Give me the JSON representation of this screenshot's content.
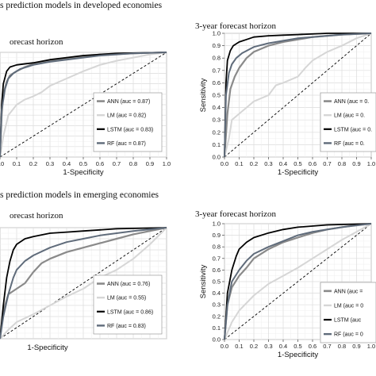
{
  "sections": [
    {
      "title": "s prediction models in developed economies"
    },
    {
      "title": "s prediction models in emerging economies"
    }
  ],
  "chart_data": [
    {
      "type": "line",
      "title": "orecast horizon",
      "xlabel": "1-Specificity",
      "ylabel": "",
      "xlim": [
        0,
        1
      ],
      "ylim": [
        0,
        1
      ],
      "x_ticks": [
        "0.0",
        "0.1",
        "0.2",
        "0.3",
        "0.4",
        "0.5",
        "0.6",
        "0.7",
        "0.8",
        "0.9",
        "1.0"
      ],
      "y_ticks": [],
      "grid": true,
      "legend_position": "bottom-right",
      "series": [
        {
          "name": "ANN (auc = 0.87)",
          "color": "#8a8a8a",
          "width": 2.2,
          "x": [
            0,
            0.01,
            0.02,
            0.04,
            0.06,
            0.1,
            0.15,
            0.2,
            0.3,
            0.4,
            0.5,
            0.6,
            0.8,
            1.0
          ],
          "y": [
            0,
            0.4,
            0.6,
            0.72,
            0.78,
            0.82,
            0.86,
            0.89,
            0.92,
            0.94,
            0.96,
            0.98,
            0.99,
            1.0
          ]
        },
        {
          "name": "LM (auc = 0.82)",
          "color": "#d6d6d6",
          "width": 2,
          "x": [
            0,
            0.02,
            0.05,
            0.1,
            0.15,
            0.2,
            0.25,
            0.3,
            0.4,
            0.5,
            0.6,
            0.7,
            0.8,
            0.9,
            1.0
          ],
          "y": [
            0,
            0.2,
            0.4,
            0.5,
            0.55,
            0.58,
            0.62,
            0.68,
            0.75,
            0.82,
            0.88,
            0.92,
            0.95,
            0.98,
            1.0
          ]
        },
        {
          "name": "LSTM (auc = 0.83)",
          "color": "#000000",
          "width": 1.8,
          "x": [
            0,
            0.01,
            0.02,
            0.04,
            0.06,
            0.1,
            0.2,
            0.3,
            0.4,
            0.5,
            0.7,
            1.0
          ],
          "y": [
            0,
            0.5,
            0.7,
            0.82,
            0.86,
            0.88,
            0.9,
            0.93,
            0.95,
            0.97,
            0.99,
            1.0
          ]
        },
        {
          "name": "RF (auc = 0.87)",
          "color": "#5f6b7a",
          "width": 2,
          "x": [
            0,
            0.01,
            0.03,
            0.05,
            0.08,
            0.12,
            0.2,
            0.3,
            0.4,
            0.5,
            0.6,
            0.8,
            1.0
          ],
          "y": [
            0,
            0.45,
            0.65,
            0.75,
            0.8,
            0.84,
            0.88,
            0.91,
            0.93,
            0.95,
            0.97,
            0.99,
            1.0
          ]
        }
      ]
    },
    {
      "type": "line",
      "title": "3-year forecast horizon",
      "xlabel": "1-Specificity",
      "ylabel": "Sensitivity",
      "xlim": [
        0,
        1
      ],
      "ylim": [
        0,
        1
      ],
      "x_ticks": [
        "0.0",
        "0.1",
        "0.2",
        "0.3",
        "0.4",
        "0.5",
        "0.6",
        "0.7",
        "0.8",
        "0.9",
        "1.0"
      ],
      "y_ticks": [
        "0.0",
        "0.1",
        "0.2",
        "0.3",
        "0.4",
        "0.5",
        "0.6",
        "0.7",
        "0.8",
        "0.9",
        "1.0"
      ],
      "grid": true,
      "legend_position": "bottom-right",
      "series": [
        {
          "name": "ANN (auc = 0.",
          "color": "#8a8a8a",
          "width": 2.2,
          "x": [
            0,
            0.02,
            0.04,
            0.07,
            0.1,
            0.15,
            0.2,
            0.3,
            0.4,
            0.5,
            0.6,
            0.7,
            0.8,
            1.0
          ],
          "y": [
            0,
            0.35,
            0.55,
            0.65,
            0.72,
            0.8,
            0.85,
            0.9,
            0.93,
            0.95,
            0.97,
            0.98,
            0.99,
            1.0
          ]
        },
        {
          "name": "LM (auc = 0.",
          "color": "#d6d6d6",
          "width": 2,
          "x": [
            0,
            0.03,
            0.05,
            0.1,
            0.15,
            0.2,
            0.3,
            0.35,
            0.4,
            0.5,
            0.55,
            0.6,
            0.7,
            0.8,
            0.9,
            1.0
          ],
          "y": [
            0,
            0.15,
            0.3,
            0.35,
            0.4,
            0.45,
            0.5,
            0.58,
            0.6,
            0.65,
            0.72,
            0.78,
            0.85,
            0.9,
            0.96,
            1.0
          ]
        },
        {
          "name": "LSTM (auc = 0.",
          "color": "#000000",
          "width": 1.8,
          "x": [
            0,
            0.01,
            0.02,
            0.04,
            0.06,
            0.1,
            0.15,
            0.2,
            0.3,
            0.4,
            0.5,
            0.7,
            1.0
          ],
          "y": [
            0,
            0.6,
            0.78,
            0.86,
            0.9,
            0.93,
            0.95,
            0.97,
            0.98,
            0.985,
            0.99,
            1.0,
            1.0
          ]
        },
        {
          "name": "RF (auc = 0.",
          "color": "#5f6b7a",
          "width": 2,
          "x": [
            0,
            0.01,
            0.03,
            0.05,
            0.08,
            0.12,
            0.2,
            0.3,
            0.4,
            0.5,
            0.6,
            0.8,
            1.0
          ],
          "y": [
            0,
            0.5,
            0.68,
            0.75,
            0.8,
            0.84,
            0.89,
            0.92,
            0.94,
            0.96,
            0.97,
            0.99,
            1.0
          ]
        }
      ]
    },
    {
      "type": "line",
      "title": "orecast horizon",
      "xlabel": "1-Specificity",
      "ylabel": "",
      "xlim": [
        0,
        1
      ],
      "ylim": [
        0,
        1
      ],
      "x_ticks": [],
      "y_ticks": [],
      "grid": true,
      "legend_position": "bottom-right",
      "series": [
        {
          "name": "ANN (auc = 0.76)",
          "color": "#8a8a8a",
          "width": 2.2,
          "x": [
            0,
            0.02,
            0.05,
            0.1,
            0.15,
            0.2,
            0.25,
            0.3,
            0.4,
            0.5,
            0.6,
            0.7,
            0.8,
            0.9,
            1.0
          ],
          "y": [
            0,
            0.25,
            0.4,
            0.45,
            0.5,
            0.6,
            0.68,
            0.72,
            0.78,
            0.82,
            0.86,
            0.9,
            0.94,
            0.97,
            1.0
          ]
        },
        {
          "name": "LM (auc = 0.55)",
          "color": "#d6d6d6",
          "width": 2,
          "x": [
            0,
            0.05,
            0.1,
            0.2,
            0.3,
            0.4,
            0.5,
            0.6,
            0.7,
            0.8,
            0.9,
            1.0
          ],
          "y": [
            0,
            0.08,
            0.15,
            0.22,
            0.3,
            0.38,
            0.45,
            0.55,
            0.62,
            0.72,
            0.85,
            1.0
          ]
        },
        {
          "name": "LSTM (auc = 0.86)",
          "color": "#000000",
          "width": 1.8,
          "x": [
            0,
            0.02,
            0.04,
            0.06,
            0.08,
            0.1,
            0.15,
            0.2,
            0.3,
            0.4,
            0.5,
            0.7,
            1.0
          ],
          "y": [
            0,
            0.3,
            0.55,
            0.7,
            0.8,
            0.85,
            0.9,
            0.92,
            0.95,
            0.96,
            0.97,
            0.99,
            1.0
          ]
        },
        {
          "name": "RF (auc = 0.83)",
          "color": "#5f6b7a",
          "width": 2,
          "x": [
            0,
            0.02,
            0.05,
            0.08,
            0.1,
            0.15,
            0.2,
            0.3,
            0.4,
            0.5,
            0.6,
            0.8,
            1.0
          ],
          "y": [
            0,
            0.2,
            0.4,
            0.55,
            0.62,
            0.7,
            0.75,
            0.82,
            0.87,
            0.9,
            0.93,
            0.97,
            1.0
          ]
        }
      ]
    },
    {
      "type": "line",
      "title": "3-year forecast horizon",
      "xlabel": "1-Specificity",
      "ylabel": "Sensitivity",
      "xlim": [
        0,
        1
      ],
      "ylim": [
        0,
        1
      ],
      "x_ticks": [
        "0.0",
        "0.1",
        "0.2",
        "0.3",
        "0.4",
        "0.5",
        "0.6",
        "0.7",
        "0.8",
        "0.9",
        "1.0"
      ],
      "y_ticks": [
        "0.0",
        "0.1",
        "0.2",
        "0.3",
        "0.4",
        "0.5",
        "0.6",
        "0.7",
        "0.8",
        "0.9",
        "1.0"
      ],
      "grid": true,
      "legend_position": "bottom-right",
      "series": [
        {
          "name": "ANN (auc =",
          "color": "#8a8a8a",
          "width": 2.2,
          "x": [
            0,
            0.02,
            0.05,
            0.1,
            0.15,
            0.2,
            0.3,
            0.4,
            0.5,
            0.6,
            0.7,
            0.8,
            0.9,
            1.0
          ],
          "y": [
            0,
            0.3,
            0.45,
            0.55,
            0.62,
            0.7,
            0.78,
            0.84,
            0.88,
            0.92,
            0.95,
            0.97,
            0.99,
            1.0
          ]
        },
        {
          "name": "LM (auc = 0",
          "color": "#d6d6d6",
          "width": 2,
          "x": [
            0,
            0.05,
            0.1,
            0.2,
            0.3,
            0.4,
            0.5,
            0.6,
            0.7,
            0.8,
            0.9,
            1.0
          ],
          "y": [
            0,
            0.15,
            0.25,
            0.38,
            0.48,
            0.55,
            0.62,
            0.7,
            0.78,
            0.86,
            0.93,
            1.0
          ]
        },
        {
          "name": "LSTM (auc",
          "color": "#000000",
          "width": 1.8,
          "x": [
            0,
            0.02,
            0.05,
            0.08,
            0.1,
            0.15,
            0.2,
            0.3,
            0.4,
            0.5,
            0.7,
            1.0
          ],
          "y": [
            0,
            0.4,
            0.6,
            0.72,
            0.78,
            0.84,
            0.88,
            0.92,
            0.95,
            0.97,
            0.99,
            1.0
          ]
        },
        {
          "name": "RF (auc = 0",
          "color": "#5f6b7a",
          "width": 2,
          "x": [
            0,
            0.02,
            0.05,
            0.1,
            0.15,
            0.2,
            0.3,
            0.4,
            0.5,
            0.6,
            0.7,
            0.8,
            1.0
          ],
          "y": [
            0,
            0.3,
            0.5,
            0.6,
            0.68,
            0.74,
            0.8,
            0.85,
            0.9,
            0.93,
            0.95,
            0.97,
            1.0
          ]
        }
      ]
    }
  ]
}
